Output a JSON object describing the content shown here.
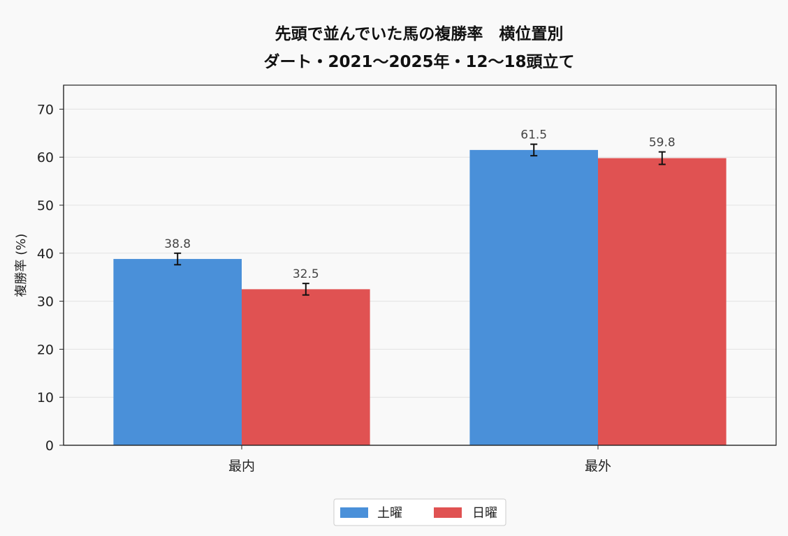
{
  "chart_data": {
    "type": "bar",
    "title_lines": [
      "先頭で並んでいた馬の複勝率　横位置別",
      "ダート・2021～2025年・12～18頭立て"
    ],
    "xlabel": "",
    "ylabel": "複勝率 (%)",
    "ylim": [
      0,
      75
    ],
    "yticks": [
      0,
      10,
      20,
      30,
      40,
      50,
      60,
      70
    ],
    "categories": [
      "最内",
      "最外"
    ],
    "series": [
      {
        "name": "土曜",
        "color": "#4a90d9",
        "values": [
          38.8,
          61.5
        ],
        "error": [
          1.2,
          1.2
        ],
        "value_labels": [
          "38.8",
          "61.5"
        ]
      },
      {
        "name": "日曜",
        "color": "#e05252",
        "values": [
          32.5,
          59.8
        ],
        "error": [
          1.2,
          1.3
        ],
        "value_labels": [
          "32.5",
          "59.8"
        ]
      }
    ],
    "grid": true,
    "legend": "bottom-center"
  }
}
